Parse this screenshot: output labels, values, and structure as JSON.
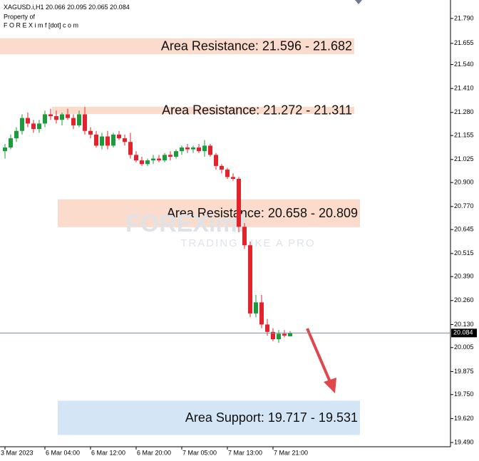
{
  "chart_data": {
    "type": "candlestick",
    "symbol": "XAGUSD.i,H1",
    "notes": [
      "Property of",
      "F O R E X i m f [dot] c o m"
    ],
    "watermark": {
      "brand": "FOREXimf",
      "tagline": "TRADING LIKE A PRO"
    },
    "categories": [
      "3 Mar 2023",
      null,
      null,
      null,
      null,
      null,
      null,
      "6 Mar 04:00",
      null,
      null,
      null,
      null,
      null,
      null,
      null,
      "6 Mar 12:00",
      null,
      null,
      null,
      null,
      null,
      null,
      null,
      "6 Mar 20:00",
      null,
      null,
      null,
      null,
      null,
      null,
      null,
      "7 Mar 05:00",
      null,
      null,
      null,
      null,
      null,
      null,
      null,
      "7 Mar 13:00",
      null,
      null,
      null,
      null,
      null,
      null,
      null,
      "7 Mar 21:00",
      null,
      null,
      null
    ],
    "open": [
      21.07,
      21.09,
      21.14,
      21.18,
      21.25,
      21.22,
      21.19,
      21.22,
      21.27,
      21.26,
      21.24,
      21.27,
      21.25,
      21.21,
      21.27,
      21.18,
      21.16,
      21.1,
      21.15,
      21.1,
      21.16,
      21.14,
      21.12,
      21.05,
      21.02,
      21.0,
      21.02,
      21.03,
      21.02,
      21.05,
      21.04,
      21.07,
      21.09,
      21.08,
      21.09,
      21.07,
      21.1,
      21.05,
      20.99,
      20.97,
      20.93,
      20.92,
      20.66,
      20.56,
      20.19,
      20.25,
      20.13,
      20.09,
      20.05,
      20.08,
      20.066
    ],
    "high": [
      21.11,
      21.16,
      21.2,
      21.27,
      21.28,
      21.24,
      21.24,
      21.29,
      21.3,
      21.29,
      21.28,
      21.3,
      21.27,
      21.29,
      21.31,
      21.2,
      21.18,
      21.17,
      21.18,
      21.17,
      21.18,
      21.16,
      21.17,
      21.07,
      21.04,
      21.03,
      21.05,
      21.05,
      21.06,
      21.07,
      21.08,
      21.1,
      21.11,
      21.1,
      21.11,
      21.13,
      21.11,
      21.06,
      21.0,
      20.98,
      20.95,
      20.93,
      20.68,
      20.58,
      20.29,
      20.29,
      20.16,
      20.11,
      20.1,
      20.1,
      20.095
    ],
    "low": [
      21.03,
      21.08,
      21.12,
      21.16,
      21.2,
      21.17,
      21.17,
      21.2,
      21.24,
      21.22,
      21.21,
      21.24,
      21.19,
      21.2,
      21.16,
      21.14,
      21.09,
      21.08,
      21.08,
      21.09,
      21.13,
      21.1,
      21.03,
      21.01,
      20.99,
      20.99,
      21.0,
      21.01,
      21.01,
      21.02,
      21.03,
      21.05,
      21.06,
      21.06,
      21.06,
      21.04,
      21.04,
      20.97,
      20.95,
      20.92,
      20.91,
      20.63,
      20.54,
      20.17,
      20.17,
      20.11,
      20.07,
      20.04,
      20.03,
      20.06,
      20.065
    ],
    "close": [
      21.09,
      21.14,
      21.18,
      21.25,
      21.22,
      21.19,
      21.22,
      21.27,
      21.26,
      21.24,
      21.27,
      21.25,
      21.21,
      21.27,
      21.18,
      21.16,
      21.1,
      21.15,
      21.1,
      21.16,
      21.14,
      21.12,
      21.05,
      21.02,
      21.0,
      21.02,
      21.03,
      21.02,
      21.05,
      21.04,
      21.07,
      21.09,
      21.08,
      21.09,
      21.07,
      21.1,
      21.05,
      20.99,
      20.97,
      20.93,
      20.92,
      20.66,
      20.56,
      20.19,
      20.25,
      20.13,
      20.09,
      20.05,
      20.08,
      20.07,
      20.084
    ],
    "up_color": "#1e9a3c",
    "down_color": "#e3232b",
    "current_price": 20.084,
    "ylim": [
      19.467,
      21.89
    ],
    "yticks": [
      {
        "value": 21.79,
        "label": "21.790"
      },
      21.655,
      {
        "value": 21.54,
        "label": "21.540"
      },
      {
        "value": 21.41,
        "label": "21.410"
      },
      {
        "value": 21.28,
        "label": "21.280"
      },
      21.155,
      21.025,
      {
        "value": 20.9,
        "label": "20.900"
      },
      {
        "value": 20.77,
        "label": "20.770"
      },
      20.645,
      20.515,
      {
        "value": 20.39,
        "label": "20.390"
      },
      {
        "value": 20.26,
        "label": "20.260"
      },
      {
        "value": 20.13,
        "label": "20.130"
      },
      20.005,
      19.875,
      {
        "value": 19.75,
        "label": "19.750"
      },
      {
        "value": 19.62,
        "label": "19.620"
      },
      {
        "value": 19.49,
        "label": "19.490"
      }
    ],
    "zones": [
      {
        "label": "Area Resistance: 21.596 - 21.682",
        "low": 21.596,
        "high": 21.682,
        "color": "#fbdccc"
      },
      {
        "label": "Area Resistance: 21.272 - 21.311",
        "low": 21.272,
        "high": 21.311,
        "color": "#fbdccc"
      },
      {
        "label": "Area Resistance: 20.658 - 20.809",
        "low": 20.658,
        "high": 20.809,
        "color": "#fbdccc"
      },
      {
        "label": "Area Support: 19.717 - 19.531",
        "low": 19.531,
        "high": 19.717,
        "color": "#d4e6f6"
      }
    ]
  }
}
